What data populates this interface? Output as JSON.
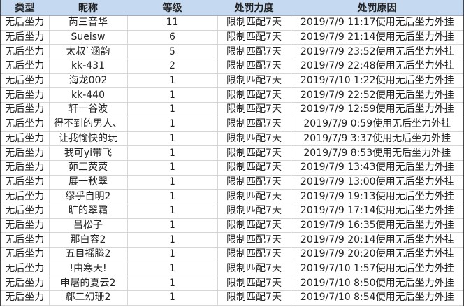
{
  "columns": [
    "类型",
    "昵称",
    "等级",
    "处罚力度",
    "处罚原因"
  ],
  "rows": [
    [
      "无后坐力",
      "芮三音华",
      "11",
      "限制匹配7天",
      "2019/7/9 11:17使用无后坐力外挂"
    ],
    [
      "无后坐力",
      "Sueisw",
      "6",
      "限制匹配7天",
      "2019/7/9 21:14使用无后坐力外挂"
    ],
    [
      "无后坐力",
      "太叔`涵韵",
      "5",
      "限制匹配7天",
      "2019/7/9 23:52使用无后坐力外挂"
    ],
    [
      "无后坐力",
      "kk-431",
      "2",
      "限制匹配7天",
      "2019/7/9 22:48使用无后坐力外挂"
    ],
    [
      "无后坐力",
      "海龙002",
      "1",
      "限制匹配7天",
      "2019/7/10 1:22使用无后坐力外挂"
    ],
    [
      "无后坐力",
      "kk-440",
      "1",
      "限制匹配7天",
      "2019/7/9 22:52使用无后坐力外挂"
    ],
    [
      "无后坐力",
      "轩一谷波",
      "1",
      "限制匹配7天",
      "2019/7/9 12:59使用无后坐力外挂"
    ],
    [
      "无后坐力",
      "得不到的男人、",
      "1",
      "限制匹配7天",
      "2019/7/9 0:59使用无后坐力外挂"
    ],
    [
      "无后坐力",
      "让我愉快的玩",
      "1",
      "限制匹配7天",
      "2019/7/9 3:37使用无后坐力外挂"
    ],
    [
      "无后坐力",
      "我可yi带飞",
      "1",
      "限制匹配7天",
      "2019/7/9 8:53使用无后坐力外挂"
    ],
    [
      "无后坐力",
      "茆三荧荧",
      "1",
      "限制匹配7天",
      "2019/7/9 13:43使用无后坐力外挂"
    ],
    [
      "无后坐力",
      "展一秋翠",
      "1",
      "限制匹配7天",
      "2019/7/9 13:00使用无后坐力外挂"
    ],
    [
      "无后坐力",
      "缪乎自明2",
      "1",
      "限制匹配7天",
      "2019/7/9 19:13使用无后坐力外挂"
    ],
    [
      "无后坐力",
      "旷的翠霜",
      "1",
      "限制匹配7天",
      "2019/7/9 17:14使用无后坐力外挂"
    ],
    [
      "无后坐力",
      "吕松子",
      "1",
      "限制匹配7天",
      "2019/7/9 16:35使用无后坐力外挂"
    ],
    [
      "无后坐力",
      "那白容2",
      "1",
      "限制匹配7天",
      "2019/7/9 20:14使用无后坐力外挂"
    ],
    [
      "无后坐力",
      "五目摇滕2",
      "1",
      "限制匹配7天",
      "2019/7/9 20:20使用无后坐力外挂"
    ],
    [
      "无后坐力",
      "!由寒天!",
      "1",
      "限制匹配7天",
      "2019/7/10 1:57使用无后坐力外挂"
    ],
    [
      "无后坐力",
      "申屠的夏云2",
      "1",
      "限制匹配7天",
      "2019/7/10 8:50使用无后坐力外挂"
    ],
    [
      "无后坐力",
      "郗二幻珊2",
      "1",
      "限制匹配7天",
      "2019/7/10 8:54使用无后坐力外挂"
    ]
  ],
  "colors": {
    "header_bg": "#c5d9f0"
  }
}
